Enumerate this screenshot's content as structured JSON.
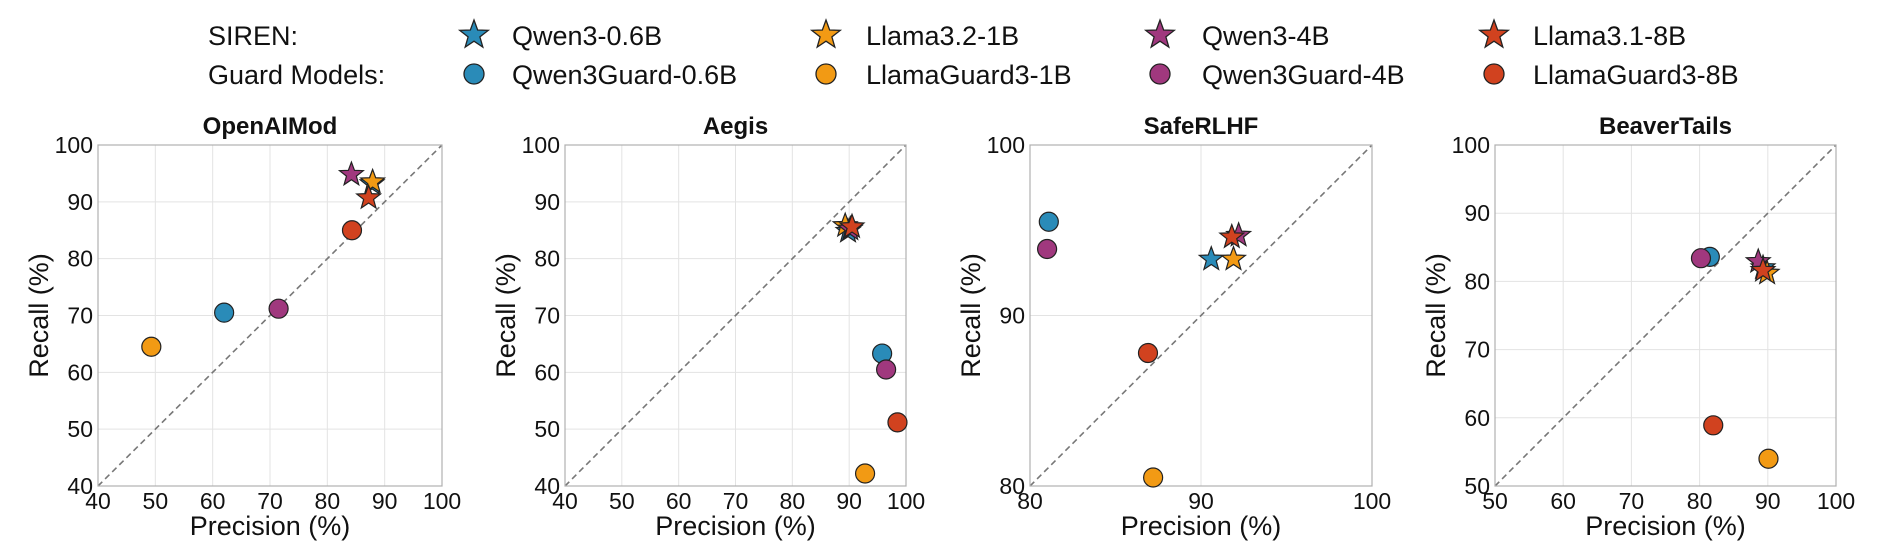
{
  "legend": {
    "rows": [
      {
        "label": "SIREN:",
        "marker": "star"
      },
      {
        "label": "Guard Models:",
        "marker": "circle"
      }
    ],
    "models": [
      {
        "siren": "Qwen3-0.6B",
        "guard": "Qwen3Guard-0.6B",
        "color": "#2a8bb8"
      },
      {
        "siren": "Llama3.2-1B",
        "guard": "LlamaGuard3-1B",
        "color": "#f29a14"
      },
      {
        "siren": "Qwen3-4B",
        "guard": "Qwen3Guard-4B",
        "color": "#a0387e"
      },
      {
        "siren": "Llama3.1-8B",
        "guard": "LlamaGuard3-8B",
        "color": "#d1421f"
      }
    ]
  },
  "colors": {
    "diagonal": "#777777",
    "grid": "#e3e3e3",
    "axis_frame": "#b0b0b0",
    "marker_edge": "#222222"
  },
  "chart_data": [
    {
      "type": "scatter",
      "title": "OpenAIMod",
      "xlabel": "Precision (%)",
      "ylabel": "Recall (%)",
      "xlim": [
        40,
        100
      ],
      "ylim": [
        40,
        100
      ],
      "xticks": [
        40,
        50,
        60,
        70,
        80,
        90,
        100
      ],
      "yticks": [
        40,
        50,
        60,
        70,
        80,
        90,
        100
      ],
      "grid": true,
      "diagonal": true,
      "series": [
        {
          "name": "Qwen3Guard-0.6B",
          "marker": "circle",
          "color": "#2a8bb8",
          "x": 62,
          "y": 70.5
        },
        {
          "name": "LlamaGuard3-1B",
          "marker": "circle",
          "color": "#f29a14",
          "x": 49.3,
          "y": 64.5
        },
        {
          "name": "Qwen3Guard-4B",
          "marker": "circle",
          "color": "#a0387e",
          "x": 71.5,
          "y": 71.2
        },
        {
          "name": "LlamaGuard3-8B",
          "marker": "circle",
          "color": "#d1421f",
          "x": 84.3,
          "y": 85
        },
        {
          "name": "Qwen3-0.6B",
          "marker": "star",
          "color": "#2a8bb8",
          "x": 87.8,
          "y": 93.2
        },
        {
          "name": "Llama3.2-1B",
          "marker": "star",
          "color": "#f29a14",
          "x": 87.9,
          "y": 93.5
        },
        {
          "name": "Qwen3-4B",
          "marker": "star",
          "color": "#a0387e",
          "x": 84.2,
          "y": 94.8
        },
        {
          "name": "Llama3.1-8B",
          "marker": "star",
          "color": "#d1421f",
          "x": 87.2,
          "y": 90.7
        }
      ]
    },
    {
      "type": "scatter",
      "title": "Aegis",
      "xlabel": "Precision (%)",
      "ylabel": "Recall (%)",
      "xlim": [
        40,
        100
      ],
      "ylim": [
        40,
        100
      ],
      "xticks": [
        40,
        50,
        60,
        70,
        80,
        90,
        100
      ],
      "yticks": [
        40,
        50,
        60,
        70,
        80,
        90,
        100
      ],
      "grid": true,
      "diagonal": true,
      "series": [
        {
          "name": "Qwen3Guard-0.6B",
          "marker": "circle",
          "color": "#2a8bb8",
          "x": 95.8,
          "y": 63.3
        },
        {
          "name": "LlamaGuard3-1B",
          "marker": "circle",
          "color": "#f29a14",
          "x": 92.8,
          "y": 42.2
        },
        {
          "name": "Qwen3Guard-4B",
          "marker": "circle",
          "color": "#a0387e",
          "x": 96.5,
          "y": 60.5
        },
        {
          "name": "LlamaGuard3-8B",
          "marker": "circle",
          "color": "#d1421f",
          "x": 98.5,
          "y": 51.2
        },
        {
          "name": "Qwen3-0.6B",
          "marker": "star",
          "color": "#2a8bb8",
          "x": 89.8,
          "y": 84.8
        },
        {
          "name": "Llama3.2-1B",
          "marker": "star",
          "color": "#f29a14",
          "x": 89.3,
          "y": 85.8
        },
        {
          "name": "Qwen3-4B",
          "marker": "star",
          "color": "#a0387e",
          "x": 90.2,
          "y": 85.2
        },
        {
          "name": "Llama3.1-8B",
          "marker": "star",
          "color": "#d1421f",
          "x": 90.5,
          "y": 85.6
        }
      ]
    },
    {
      "type": "scatter",
      "title": "SafeRLHF",
      "xlabel": "Precision (%)",
      "ylabel": "Recall (%)",
      "xlim": [
        80,
        100
      ],
      "ylim": [
        80,
        100
      ],
      "xticks": [
        80,
        90,
        100
      ],
      "yticks": [
        80,
        90,
        100
      ],
      "grid": true,
      "diagonal": true,
      "series": [
        {
          "name": "Qwen3Guard-0.6B",
          "marker": "circle",
          "color": "#2a8bb8",
          "x": 81.1,
          "y": 95.5
        },
        {
          "name": "LlamaGuard3-1B",
          "marker": "circle",
          "color": "#f29a14",
          "x": 87.2,
          "y": 80.5
        },
        {
          "name": "Qwen3Guard-4B",
          "marker": "circle",
          "color": "#a0387e",
          "x": 81,
          "y": 93.9
        },
        {
          "name": "LlamaGuard3-8B",
          "marker": "circle",
          "color": "#d1421f",
          "x": 86.9,
          "y": 87.8
        },
        {
          "name": "Qwen3-0.6B",
          "marker": "star",
          "color": "#2a8bb8",
          "x": 90.6,
          "y": 93.3
        },
        {
          "name": "Llama3.2-1B",
          "marker": "star",
          "color": "#f29a14",
          "x": 91.9,
          "y": 93.3
        },
        {
          "name": "Qwen3-4B",
          "marker": "star",
          "color": "#a0387e",
          "x": 92.2,
          "y": 94.7
        },
        {
          "name": "Llama3.1-8B",
          "marker": "star",
          "color": "#d1421f",
          "x": 91.8,
          "y": 94.6
        }
      ]
    },
    {
      "type": "scatter",
      "title": "BeaverTails",
      "xlabel": "Precision (%)",
      "ylabel": "Recall (%)",
      "xlim": [
        50,
        100
      ],
      "ylim": [
        50,
        100
      ],
      "xticks": [
        50,
        60,
        70,
        80,
        90,
        100
      ],
      "yticks": [
        50,
        60,
        70,
        80,
        90,
        100
      ],
      "grid": true,
      "diagonal": true,
      "series": [
        {
          "name": "Qwen3Guard-0.6B",
          "marker": "circle",
          "color": "#2a8bb8",
          "x": 81.5,
          "y": 83.6
        },
        {
          "name": "LlamaGuard3-1B",
          "marker": "circle",
          "color": "#f29a14",
          "x": 90.1,
          "y": 54
        },
        {
          "name": "Qwen3Guard-4B",
          "marker": "circle",
          "color": "#a0387e",
          "x": 80.2,
          "y": 83.4
        },
        {
          "name": "LlamaGuard3-8B",
          "marker": "circle",
          "color": "#d1421f",
          "x": 82,
          "y": 58.9
        },
        {
          "name": "Qwen3-0.6B",
          "marker": "star",
          "color": "#2a8bb8",
          "x": 89.3,
          "y": 82
        },
        {
          "name": "Llama3.2-1B",
          "marker": "star",
          "color": "#f29a14",
          "x": 89.9,
          "y": 81.2
        },
        {
          "name": "Qwen3-4B",
          "marker": "star",
          "color": "#a0387e",
          "x": 88.6,
          "y": 82.9
        },
        {
          "name": "Llama3.1-8B",
          "marker": "star",
          "color": "#d1421f",
          "x": 89.3,
          "y": 81.6
        }
      ]
    }
  ]
}
